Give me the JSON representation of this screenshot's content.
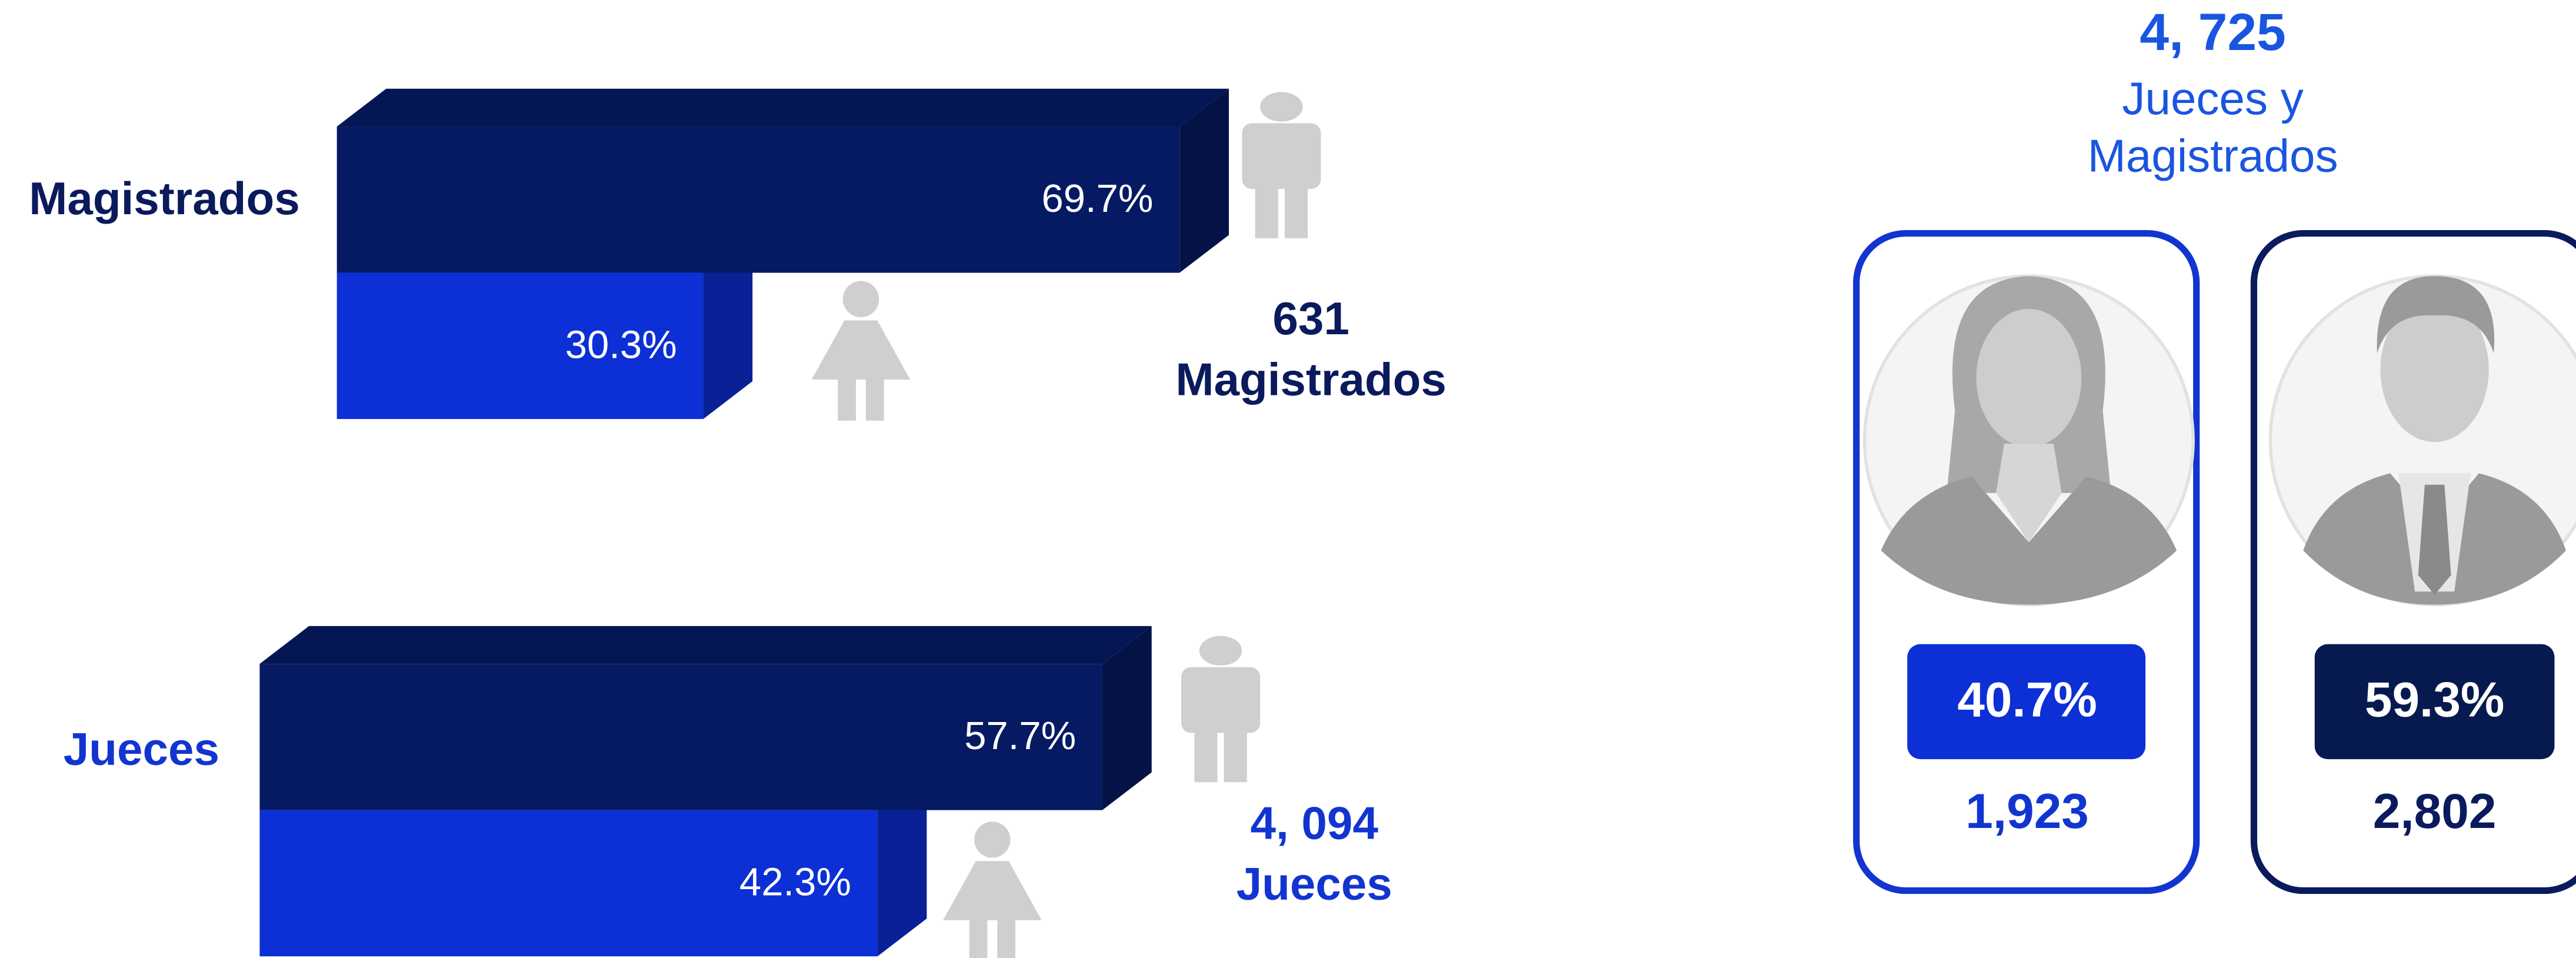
{
  "chart_data": [
    {
      "type": "bar",
      "orientation": "horizontal",
      "title": "Magistrados",
      "title_color": "#0a1a5c",
      "values": [
        69.7,
        30.3
      ],
      "value_labels": [
        "69.7%",
        "30.3%"
      ],
      "colors": [
        "#061a63",
        "#0c2fd6"
      ],
      "total": 631,
      "total_label": "Magistrados",
      "total_color": "#0a1a5c"
    },
    {
      "type": "bar",
      "orientation": "horizontal",
      "title": "Jueces",
      "title_color": "#1235d0",
      "values": [
        57.7,
        42.3
      ],
      "value_labels": [
        "57.7%",
        "42.3%"
      ],
      "colors": [
        "#061a63",
        "#0c2fd6"
      ],
      "total": "4, 094",
      "total_label": "Jueces",
      "total_color": "#1235d0"
    }
  ],
  "summary": {
    "total": "4, 725",
    "label_line1": "Jueces y",
    "label_line2": "Magistrados",
    "cards": [
      {
        "percent": "40.7%",
        "count": "1,923"
      },
      {
        "percent": "59.3%",
        "count": "2,802"
      }
    ]
  }
}
